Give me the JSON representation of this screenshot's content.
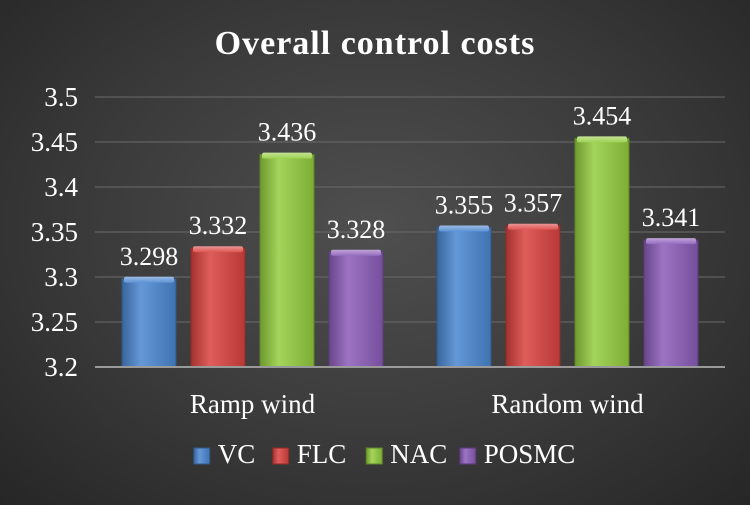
{
  "chart_data": {
    "type": "bar",
    "title": "Overall control costs",
    "categories": [
      "Ramp wind",
      "Random wind"
    ],
    "series": [
      {
        "name": "VC",
        "values": [
          3.298,
          3.355
        ],
        "color": "#4a86d0"
      },
      {
        "name": "FLC",
        "values": [
          3.332,
          3.357
        ],
        "color": "#d9423f"
      },
      {
        "name": "NAC",
        "values": [
          3.436,
          3.454
        ],
        "color": "#93cc3e"
      },
      {
        "name": "POSMC",
        "values": [
          3.328,
          3.341
        ],
        "color": "#8a5cb8"
      }
    ],
    "data_labels": [
      [
        "3.298",
        "3.355"
      ],
      [
        "3.332",
        "3.357"
      ],
      [
        "3.436",
        "3.454"
      ],
      [
        "3.328",
        "3.341"
      ]
    ],
    "yticks": [
      "3.2",
      "3.25",
      "3.3",
      "3.35",
      "3.4",
      "3.45",
      "3.5"
    ],
    "ylim": [
      3.2,
      3.5
    ],
    "grid": true,
    "legend_position": "bottom",
    "background": "#3a3a3a"
  }
}
